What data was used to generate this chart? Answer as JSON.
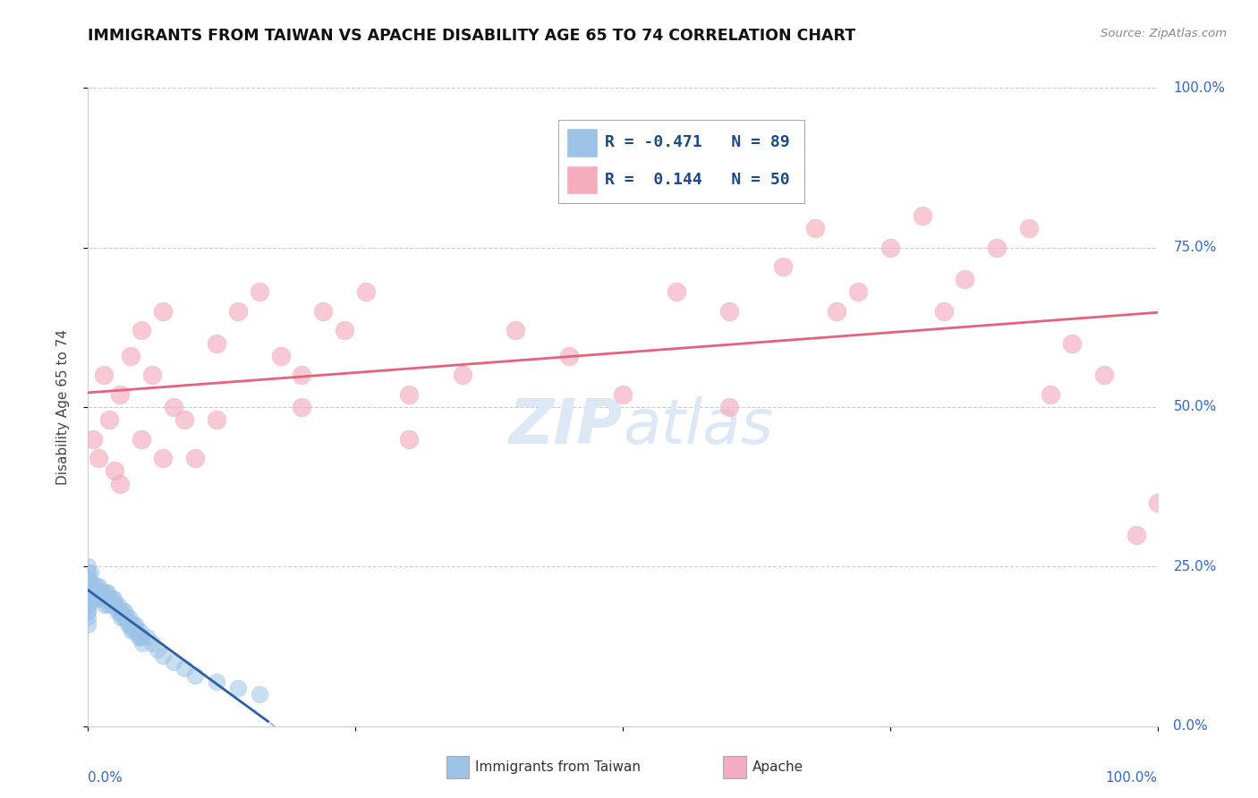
{
  "title": "IMMIGRANTS FROM TAIWAN VS APACHE DISABILITY AGE 65 TO 74 CORRELATION CHART",
  "source": "Source: ZipAtlas.com",
  "ylabel": "Disability Age 65 to 74",
  "legend_blue_r": "R = -0.471",
  "legend_blue_n": "N = 89",
  "legend_pink_r": "R =  0.144",
  "legend_pink_n": "N = 50",
  "legend_blue_label": "Immigrants from Taiwan",
  "legend_pink_label": "Apache",
  "ytick_labels": [
    "0.0%",
    "25.0%",
    "50.0%",
    "75.0%",
    "100.0%"
  ],
  "ytick_values": [
    0,
    25,
    50,
    75,
    100
  ],
  "blue_color": "#9dc3e6",
  "pink_color": "#f4acbe",
  "blue_line_color": "#2e5fa3",
  "pink_line_color": "#e8607a",
  "background_color": "#ffffff",
  "watermark_text": "ZIPatlas",
  "watermark_color": "#dce8f5",
  "blue_x": [
    0.0,
    0.0,
    0.0,
    0.0,
    0.0,
    0.0,
    0.0,
    0.0,
    0.0,
    0.0,
    0.0,
    0.0,
    0.0,
    0.0,
    0.0,
    0.0,
    0.0,
    0.0,
    0.0,
    0.0,
    0.2,
    0.3,
    0.4,
    0.5,
    0.6,
    0.7,
    0.8,
    0.9,
    1.0,
    1.1,
    1.2,
    1.3,
    1.4,
    1.5,
    1.6,
    1.7,
    1.8,
    1.9,
    2.0,
    2.1,
    2.2,
    2.3,
    2.4,
    2.5,
    2.6,
    2.7,
    2.8,
    2.9,
    3.0,
    3.1,
    3.2,
    3.3,
    3.4,
    3.5,
    3.6,
    3.7,
    3.8,
    3.9,
    4.0,
    4.1,
    4.2,
    4.3,
    4.4,
    4.5,
    4.6,
    4.7,
    4.8,
    4.9,
    5.0,
    5.1,
    5.5,
    6.0,
    6.5,
    7.0,
    8.0,
    9.0,
    10.0,
    12.0,
    14.0,
    16.0,
    0.1,
    0.1,
    0.2,
    0.2,
    0.3,
    0.5,
    0.6,
    0.8,
    1.0
  ],
  "blue_y": [
    20,
    22,
    18,
    24,
    19,
    21,
    23,
    17,
    25,
    16,
    22,
    20,
    23,
    18,
    21,
    19,
    22,
    20,
    21,
    22,
    22,
    21,
    20,
    22,
    21,
    20,
    22,
    21,
    20,
    21,
    20,
    21,
    20,
    19,
    21,
    20,
    21,
    19,
    20,
    19,
    20,
    19,
    20,
    19,
    19,
    18,
    19,
    18,
    18,
    17,
    18,
    17,
    18,
    17,
    17,
    16,
    17,
    16,
    16,
    15,
    16,
    15,
    16,
    15,
    15,
    14,
    15,
    14,
    14,
    13,
    14,
    13,
    12,
    11,
    10,
    9,
    8,
    7,
    6,
    5,
    21,
    23,
    22,
    24,
    21,
    22,
    20,
    21,
    22
  ],
  "pink_x": [
    0.5,
    1.0,
    1.5,
    2.0,
    2.5,
    3.0,
    4.0,
    5.0,
    6.0,
    7.0,
    8.0,
    9.0,
    10.0,
    12.0,
    14.0,
    16.0,
    18.0,
    20.0,
    22.0,
    24.0,
    26.0,
    30.0,
    35.0,
    40.0,
    45.0,
    50.0,
    55.0,
    60.0,
    65.0,
    68.0,
    70.0,
    72.0,
    75.0,
    78.0,
    80.0,
    82.0,
    85.0,
    88.0,
    90.0,
    92.0,
    95.0,
    98.0,
    100.0,
    3.0,
    5.0,
    7.0,
    12.0,
    20.0,
    30.0,
    60.0
  ],
  "pink_y": [
    45,
    42,
    55,
    48,
    40,
    52,
    58,
    62,
    55,
    65,
    50,
    48,
    42,
    60,
    65,
    68,
    58,
    50,
    65,
    62,
    68,
    45,
    55,
    62,
    58,
    52,
    68,
    65,
    72,
    78,
    65,
    68,
    75,
    80,
    65,
    70,
    75,
    78,
    52,
    60,
    55,
    30,
    35,
    38,
    45,
    42,
    48,
    55,
    52,
    50
  ]
}
